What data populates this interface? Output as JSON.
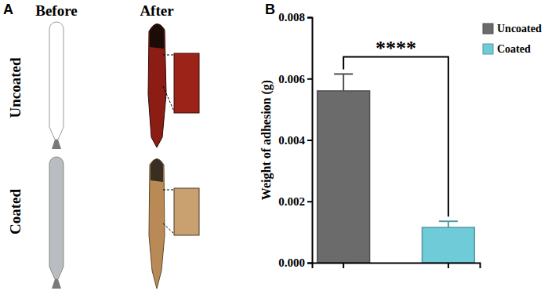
{
  "figure": {
    "panels": [
      "A",
      "B"
    ],
    "column_headers": [
      "Before",
      "After"
    ],
    "row_labels": [
      "Uncoated",
      "Coated"
    ]
  },
  "chart_data": {
    "type": "bar",
    "y_label": "Weight of adhesion (g)",
    "categories": [
      null,
      null
    ],
    "series": [
      {
        "name": "Uncoated",
        "color": "#6b6b6b",
        "values": [
          0.0056,
          null
        ],
        "errors": [
          0.00055,
          null
        ]
      },
      {
        "name": "Coated",
        "color": "#6fcbd8",
        "values": [
          null,
          0.00115
        ],
        "errors": [
          null,
          0.0002
        ]
      }
    ],
    "ylim": [
      0,
      0.008
    ],
    "yticks": [
      {
        "value": 0,
        "label": "0.000"
      },
      {
        "value": 0.002,
        "label": "0.002"
      },
      {
        "value": 0.004,
        "label": "0.004"
      },
      {
        "value": 0.006,
        "label": "0.006"
      },
      {
        "value": 0.008,
        "label": "0.008"
      }
    ],
    "annotations": [
      "****"
    ],
    "legend": "right",
    "grid": false
  }
}
